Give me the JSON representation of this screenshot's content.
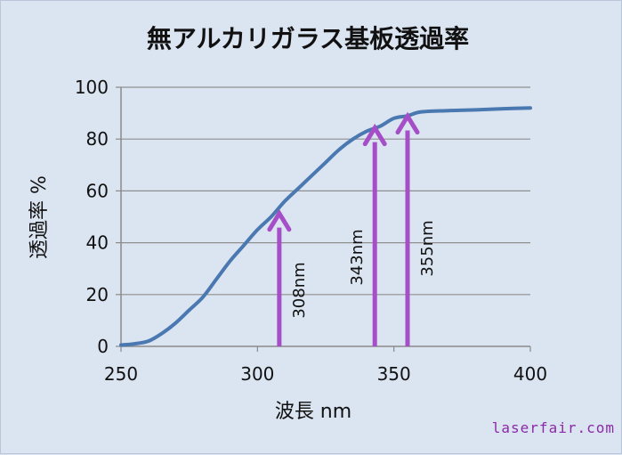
{
  "chart_data": {
    "type": "line",
    "title": "無アルカリガラス基板透過率",
    "xlabel": "波長 nm",
    "ylabel": "透過率 %",
    "xlim": [
      250,
      400
    ],
    "ylim": [
      0,
      100
    ],
    "x_ticks": [
      250,
      300,
      350,
      400
    ],
    "y_ticks": [
      0,
      20,
      40,
      60,
      80,
      100
    ],
    "grid": "horizontal",
    "colors": {
      "line": "#4a78b0",
      "arrow": "#a64dc8",
      "watermark": "#8b2aa6"
    },
    "series": [
      {
        "x": [
          250,
          255,
          260,
          265,
          270,
          275,
          280,
          285,
          290,
          295,
          300,
          305,
          310,
          315,
          320,
          325,
          330,
          335,
          340,
          345,
          350,
          355,
          360,
          370,
          380,
          390,
          400
        ],
        "y": [
          0.5,
          1,
          2,
          5,
          9,
          14,
          19,
          26,
          33,
          39,
          45,
          50,
          56,
          61,
          66,
          71,
          76,
          80,
          83,
          85,
          88,
          89,
          90.5,
          91,
          91.3,
          91.7,
          92
        ]
      }
    ],
    "annotations": [
      {
        "x": 308,
        "y": 52,
        "label": "308nm"
      },
      {
        "x": 343,
        "y": 85,
        "label": "343nm"
      },
      {
        "x": 355,
        "y": 89.5,
        "label": "355nm"
      }
    ]
  },
  "watermark": "laserfair.com"
}
